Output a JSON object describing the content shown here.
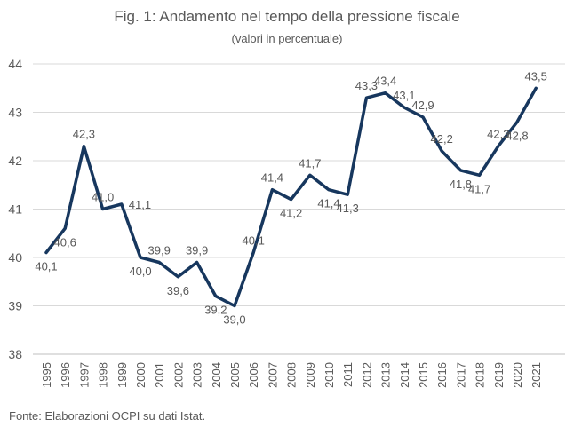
{
  "chart_data": {
    "type": "line",
    "title": "Fig. 1: Andamento nel tempo della pressione fiscale",
    "subtitle": "(valori in percentuale)",
    "xlabel": "",
    "ylabel": "",
    "ylim": [
      38,
      44
    ],
    "yticks": [
      "38",
      "39",
      "40",
      "41",
      "42",
      "43",
      "44"
    ],
    "grid": true,
    "categories": [
      "1995",
      "1996",
      "1997",
      "1998",
      "1999",
      "2000",
      "2001",
      "2002",
      "2003",
      "2004",
      "2005",
      "2006",
      "2007",
      "2008",
      "2009",
      "2010",
      "2011",
      "2012",
      "2013",
      "2014",
      "2015",
      "2016",
      "2017",
      "2018",
      "2019",
      "2020",
      "2021"
    ],
    "values": [
      40.1,
      40.6,
      42.3,
      41.0,
      41.1,
      40.0,
      39.9,
      39.6,
      39.9,
      39.2,
      39.0,
      40.1,
      41.4,
      41.2,
      41.7,
      41.4,
      41.3,
      43.3,
      43.4,
      43.1,
      42.9,
      42.2,
      41.8,
      41.7,
      42.3,
      42.8,
      43.5
    ],
    "data_labels": [
      "40,1",
      "40,6",
      "42,3",
      "41,0",
      "41,1",
      "40,0",
      "39,9",
      "39,6",
      "39,9",
      "39,2",
      "39,0",
      "40,1",
      "41,4",
      "41,2",
      "41,7",
      "41,4",
      "41,3",
      "43,3",
      "43,4",
      "43,1",
      "42,9",
      "42,2",
      "41,8",
      "41,7",
      "42,3",
      "42,8",
      "43,5"
    ],
    "label_positions": [
      "below",
      "below",
      "above",
      "above",
      "right",
      "below",
      "above",
      "below",
      "above",
      "below",
      "below",
      "above",
      "above",
      "below",
      "above",
      "below",
      "below",
      "above",
      "above",
      "above",
      "above",
      "above",
      "below",
      "below",
      "above",
      "below",
      "above"
    ],
    "line_color": "#17375E",
    "grid_color": "#D9D9D9",
    "text_color": "#595959"
  },
  "source_note": "Fonte: Elaborazioni OCPI su dati Istat."
}
